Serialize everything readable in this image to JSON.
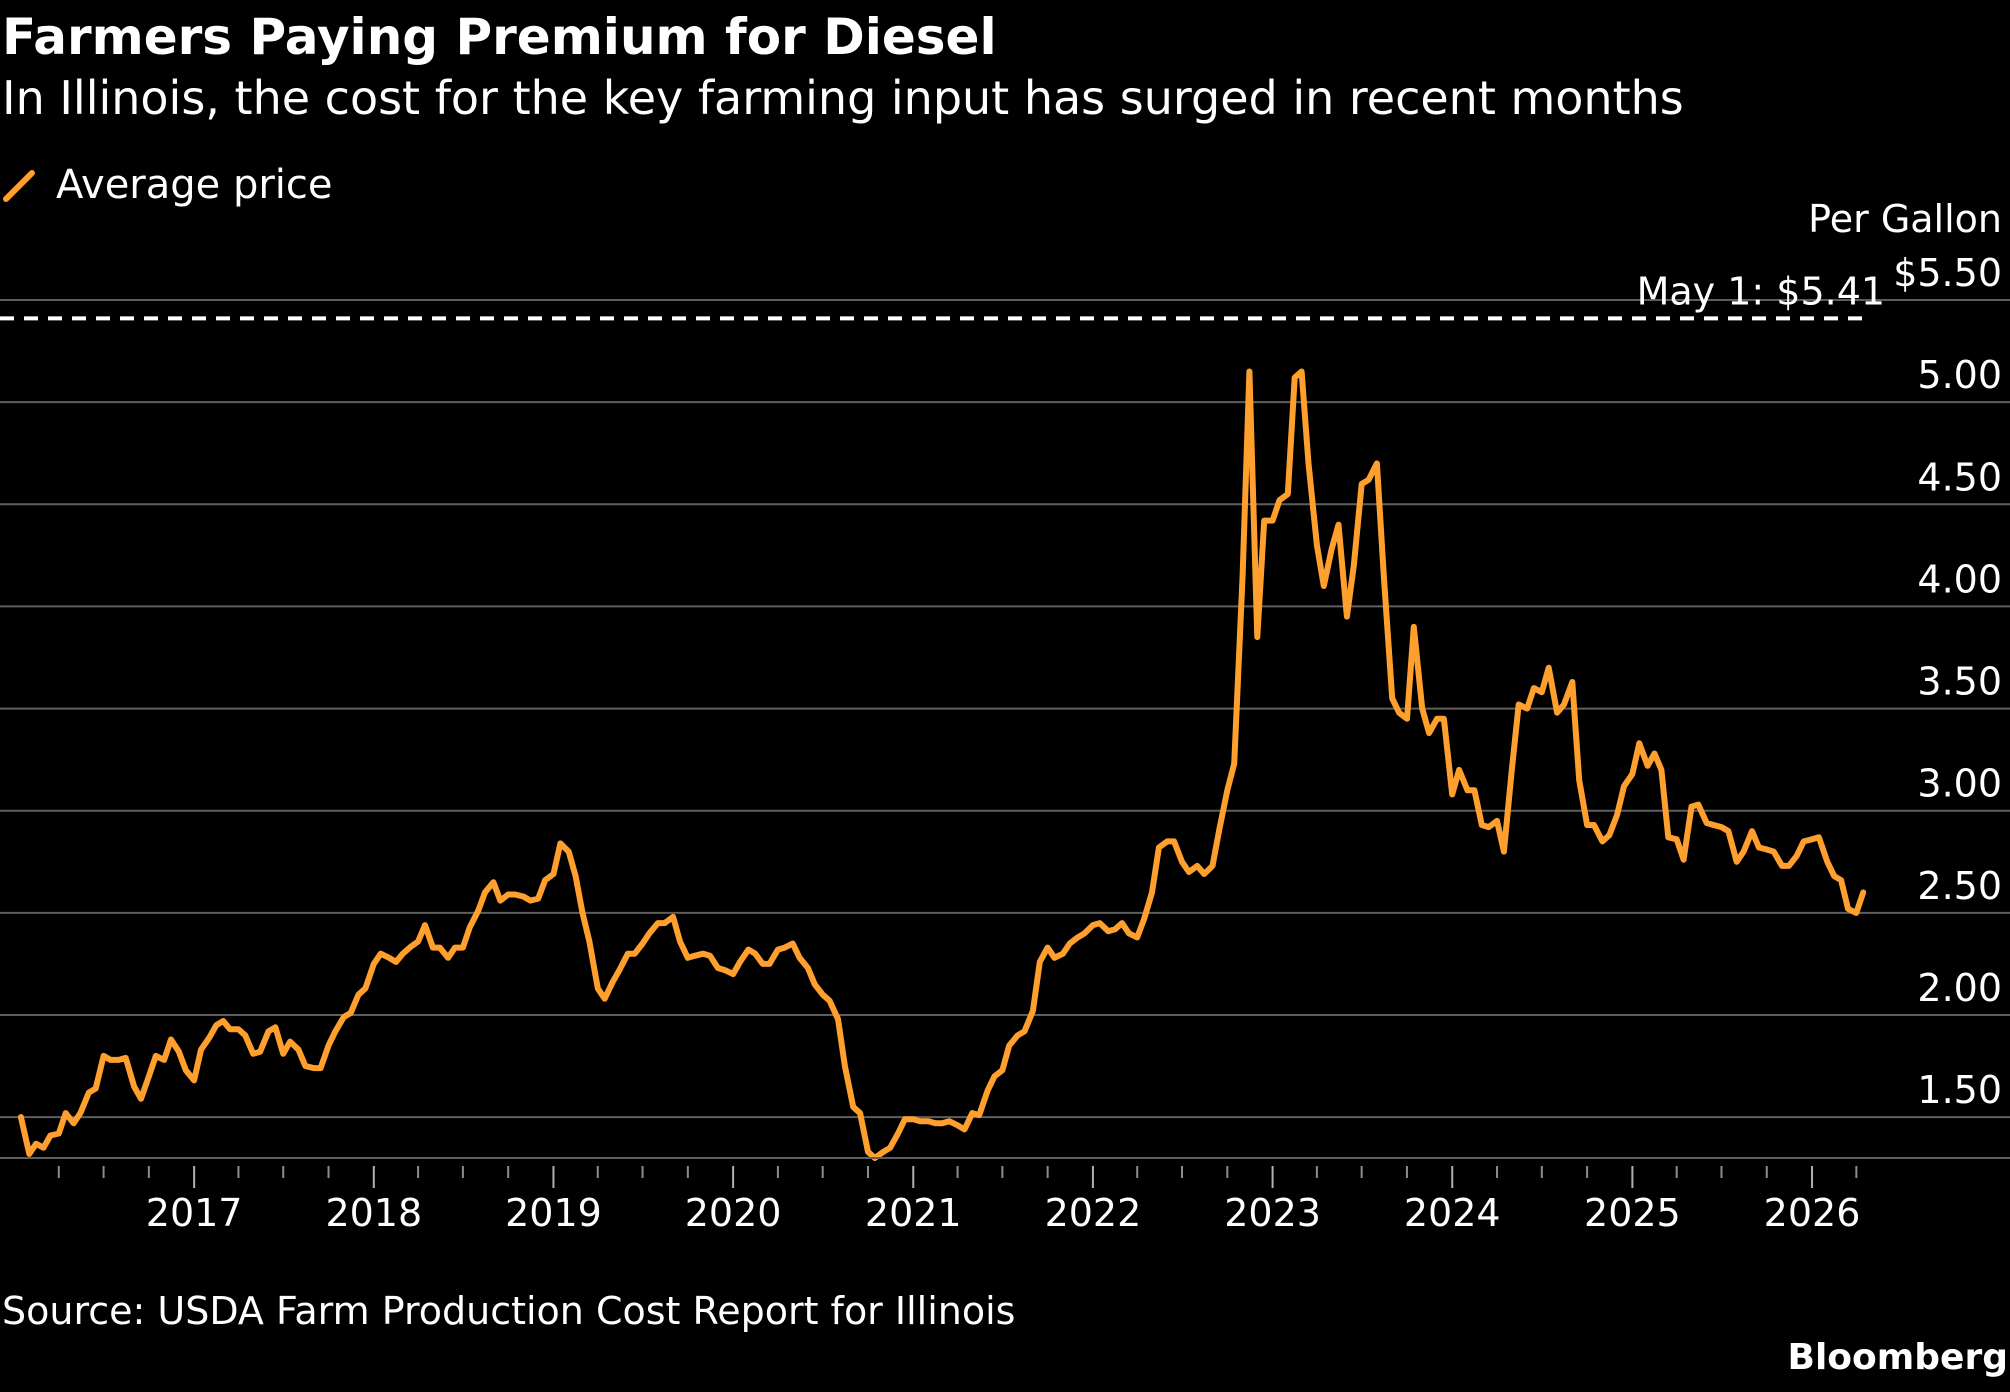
{
  "header": {
    "title": "Farmers Paying Premium for Diesel",
    "subtitle": "In Illinois, the cost for the key farming input has surged in recent months"
  },
  "legend": {
    "label": "Average price",
    "color": "#ff9f2e"
  },
  "footer": {
    "source": "Source: USDA Farm Production Cost Report for Illinois",
    "brand": "Bloomberg"
  },
  "chart_data": {
    "type": "line",
    "title": "Farmers Paying Premium for Diesel",
    "subtitle": "In Illinois, the cost for the key farming input has surged in recent months",
    "unit_label": "Per Gallon",
    "xlabel": "",
    "ylabel": "",
    "xlim": [
      "2016-01-01",
      "2026-05-15"
    ],
    "ylim": [
      1.3,
      5.5
    ],
    "y_ticks": [
      {
        "value": 1.5,
        "label": "1.50"
      },
      {
        "value": 2.0,
        "label": "2.00"
      },
      {
        "value": 2.5,
        "label": "2.50"
      },
      {
        "value": 3.0,
        "label": "3.00"
      },
      {
        "value": 3.5,
        "label": "3.50"
      },
      {
        "value": 4.0,
        "label": "4.00"
      },
      {
        "value": 4.5,
        "label": "4.50"
      },
      {
        "value": 5.0,
        "label": "5.00"
      },
      {
        "value": 5.5,
        "label": "$5.50"
      }
    ],
    "x_ticks": [
      "2017",
      "2018",
      "2019",
      "2020",
      "2021",
      "2022",
      "2023",
      "2024",
      "2025",
      "2026"
    ],
    "grid": true,
    "legend_position": "top-left",
    "annotation": {
      "label": "May 1: $5.41",
      "value": 5.41,
      "date": "2026-05-01"
    },
    "series": [
      {
        "name": "Average price",
        "color": "#ff9f2e",
        "points": [
          [
            "2016-01-15",
            1.5
          ],
          [
            "2016-02-01",
            1.32
          ],
          [
            "2016-02-15",
            1.37
          ],
          [
            "2016-03-01",
            1.35
          ],
          [
            "2016-03-15",
            1.41
          ],
          [
            "2016-04-01",
            1.42
          ],
          [
            "2016-04-15",
            1.52
          ],
          [
            "2016-05-01",
            1.47
          ],
          [
            "2016-05-15",
            1.52
          ],
          [
            "2016-06-01",
            1.62
          ],
          [
            "2016-06-15",
            1.64
          ],
          [
            "2016-07-01",
            1.8
          ],
          [
            "2016-07-15",
            1.78
          ],
          [
            "2016-08-01",
            1.78
          ],
          [
            "2016-08-15",
            1.79
          ],
          [
            "2016-09-01",
            1.65
          ],
          [
            "2016-09-15",
            1.59
          ],
          [
            "2016-10-01",
            1.7
          ],
          [
            "2016-10-15",
            1.8
          ],
          [
            "2016-11-01",
            1.78
          ],
          [
            "2016-11-15",
            1.88
          ],
          [
            "2016-12-01",
            1.82
          ],
          [
            "2016-12-15",
            1.73
          ],
          [
            "2017-01-01",
            1.68
          ],
          [
            "2017-01-15",
            1.83
          ],
          [
            "2017-02-01",
            1.89
          ],
          [
            "2017-02-15",
            1.95
          ],
          [
            "2017-03-01",
            1.97
          ],
          [
            "2017-03-15",
            1.93
          ],
          [
            "2017-04-01",
            1.93
          ],
          [
            "2017-04-15",
            1.9
          ],
          [
            "2017-05-01",
            1.81
          ],
          [
            "2017-05-15",
            1.82
          ],
          [
            "2017-06-01",
            1.92
          ],
          [
            "2017-06-15",
            1.94
          ],
          [
            "2017-07-01",
            1.81
          ],
          [
            "2017-07-15",
            1.87
          ],
          [
            "2017-08-01",
            1.83
          ],
          [
            "2017-08-15",
            1.75
          ],
          [
            "2017-09-01",
            1.74
          ],
          [
            "2017-09-15",
            1.74
          ],
          [
            "2017-10-01",
            1.85
          ],
          [
            "2017-10-15",
            1.92
          ],
          [
            "2017-11-01",
            1.99
          ],
          [
            "2017-11-15",
            2.01
          ],
          [
            "2017-12-01",
            2.1
          ],
          [
            "2017-12-15",
            2.13
          ],
          [
            "2018-01-01",
            2.25
          ],
          [
            "2018-01-15",
            2.3
          ],
          [
            "2018-02-01",
            2.28
          ],
          [
            "2018-02-15",
            2.26
          ],
          [
            "2018-03-01",
            2.3
          ],
          [
            "2018-03-15",
            2.33
          ],
          [
            "2018-04-01",
            2.36
          ],
          [
            "2018-04-15",
            2.44
          ],
          [
            "2018-05-01",
            2.33
          ],
          [
            "2018-05-15",
            2.33
          ],
          [
            "2018-06-01",
            2.28
          ],
          [
            "2018-06-15",
            2.33
          ],
          [
            "2018-07-01",
            2.33
          ],
          [
            "2018-07-15",
            2.43
          ],
          [
            "2018-08-01",
            2.51
          ],
          [
            "2018-08-15",
            2.6
          ],
          [
            "2018-09-01",
            2.65
          ],
          [
            "2018-09-15",
            2.56
          ],
          [
            "2018-10-01",
            2.59
          ],
          [
            "2018-10-15",
            2.59
          ],
          [
            "2018-11-01",
            2.58
          ],
          [
            "2018-11-15",
            2.56
          ],
          [
            "2018-12-01",
            2.57
          ],
          [
            "2018-12-15",
            2.66
          ],
          [
            "2019-01-01",
            2.69
          ],
          [
            "2019-01-15",
            2.84
          ],
          [
            "2019-02-01",
            2.8
          ],
          [
            "2019-02-15",
            2.68
          ],
          [
            "2019-03-01",
            2.5
          ],
          [
            "2019-03-15",
            2.36
          ],
          [
            "2019-04-01",
            2.13
          ],
          [
            "2019-04-15",
            2.08
          ],
          [
            "2019-05-01",
            2.16
          ],
          [
            "2019-05-15",
            2.22
          ],
          [
            "2019-06-01",
            2.3
          ],
          [
            "2019-06-15",
            2.3
          ],
          [
            "2019-07-01",
            2.35
          ],
          [
            "2019-07-15",
            2.4
          ],
          [
            "2019-08-01",
            2.45
          ],
          [
            "2019-08-15",
            2.45
          ],
          [
            "2019-09-01",
            2.48
          ],
          [
            "2019-09-15",
            2.36
          ],
          [
            "2019-10-01",
            2.28
          ],
          [
            "2019-10-15",
            2.29
          ],
          [
            "2019-11-01",
            2.3
          ],
          [
            "2019-11-15",
            2.29
          ],
          [
            "2019-12-01",
            2.23
          ],
          [
            "2019-12-15",
            2.22
          ],
          [
            "2020-01-01",
            2.2
          ],
          [
            "2020-01-15",
            2.26
          ],
          [
            "2020-02-01",
            2.32
          ],
          [
            "2020-02-15",
            2.3
          ],
          [
            "2020-03-01",
            2.25
          ],
          [
            "2020-03-15",
            2.25
          ],
          [
            "2020-04-01",
            2.32
          ],
          [
            "2020-04-15",
            2.33
          ],
          [
            "2020-05-01",
            2.35
          ],
          [
            "2020-05-15",
            2.28
          ],
          [
            "2020-06-01",
            2.23
          ],
          [
            "2020-06-15",
            2.15
          ],
          [
            "2020-07-01",
            2.1
          ],
          [
            "2020-07-15",
            2.07
          ],
          [
            "2020-08-01",
            1.98
          ],
          [
            "2020-08-15",
            1.75
          ],
          [
            "2020-09-01",
            1.55
          ],
          [
            "2020-09-15",
            1.52
          ],
          [
            "2020-10-01",
            1.33
          ],
          [
            "2020-10-15",
            1.3
          ],
          [
            "2020-11-01",
            1.33
          ],
          [
            "2020-11-15",
            1.35
          ],
          [
            "2020-12-01",
            1.42
          ],
          [
            "2020-12-15",
            1.49
          ],
          [
            "2021-01-01",
            1.49
          ],
          [
            "2021-01-15",
            1.48
          ],
          [
            "2021-02-01",
            1.48
          ],
          [
            "2021-02-15",
            1.47
          ],
          [
            "2021-03-01",
            1.47
          ],
          [
            "2021-03-15",
            1.48
          ],
          [
            "2021-04-01",
            1.46
          ],
          [
            "2021-04-15",
            1.44
          ],
          [
            "2021-05-01",
            1.52
          ],
          [
            "2021-05-15",
            1.51
          ],
          [
            "2021-06-01",
            1.63
          ],
          [
            "2021-06-15",
            1.7
          ],
          [
            "2021-07-01",
            1.73
          ],
          [
            "2021-07-15",
            1.85
          ],
          [
            "2021-08-01",
            1.9
          ],
          [
            "2021-08-15",
            1.92
          ],
          [
            "2021-09-01",
            2.02
          ],
          [
            "2021-09-15",
            2.26
          ],
          [
            "2021-10-01",
            2.33
          ],
          [
            "2021-10-15",
            2.28
          ],
          [
            "2021-11-01",
            2.3
          ],
          [
            "2021-11-15",
            2.35
          ],
          [
            "2021-12-01",
            2.38
          ],
          [
            "2021-12-15",
            2.4
          ],
          [
            "2022-01-01",
            2.44
          ],
          [
            "2022-01-15",
            2.45
          ],
          [
            "2022-02-01",
            2.41
          ],
          [
            "2022-02-15",
            2.42
          ],
          [
            "2022-03-01",
            2.45
          ],
          [
            "2022-03-15",
            2.4
          ],
          [
            "2022-04-01",
            2.38
          ],
          [
            "2022-04-15",
            2.47
          ],
          [
            "2022-05-01",
            2.6
          ],
          [
            "2022-05-15",
            2.82
          ],
          [
            "2022-06-01",
            2.85
          ],
          [
            "2022-06-15",
            2.85
          ],
          [
            "2022-07-01",
            2.75
          ],
          [
            "2022-07-15",
            2.7
          ],
          [
            "2022-08-01",
            2.73
          ],
          [
            "2022-08-15",
            2.69
          ],
          [
            "2022-09-01",
            2.73
          ],
          [
            "2022-09-15",
            2.91
          ],
          [
            "2022-10-01",
            3.1
          ],
          [
            "2022-10-15",
            3.23
          ],
          [
            "2022-11-01",
            4.15
          ],
          [
            "2022-11-15",
            5.15
          ],
          [
            "2022-12-01",
            3.85
          ],
          [
            "2022-12-15",
            4.42
          ],
          [
            "2023-01-01",
            4.42
          ],
          [
            "2023-01-15",
            4.52
          ],
          [
            "2023-02-01",
            4.55
          ],
          [
            "2023-02-15",
            5.12
          ],
          [
            "2023-03-01",
            5.15
          ],
          [
            "2023-03-15",
            4.7
          ],
          [
            "2023-04-01",
            4.3
          ],
          [
            "2023-04-15",
            4.1
          ],
          [
            "2023-05-01",
            4.28
          ],
          [
            "2023-05-15",
            4.4
          ],
          [
            "2023-06-01",
            3.95
          ],
          [
            "2023-06-15",
            4.2
          ],
          [
            "2023-07-01",
            4.6
          ],
          [
            "2023-07-15",
            4.62
          ],
          [
            "2023-08-01",
            4.7
          ],
          [
            "2023-08-15",
            4.15
          ],
          [
            "2023-09-01",
            3.55
          ],
          [
            "2023-09-15",
            3.48
          ],
          [
            "2023-10-01",
            3.45
          ],
          [
            "2023-10-15",
            3.9
          ],
          [
            "2023-11-01",
            3.5
          ],
          [
            "2023-11-15",
            3.38
          ],
          [
            "2023-12-01",
            3.45
          ],
          [
            "2023-12-15",
            3.45
          ],
          [
            "2024-01-01",
            3.08
          ],
          [
            "2024-01-15",
            3.2
          ],
          [
            "2024-02-01",
            3.1
          ],
          [
            "2024-02-15",
            3.1
          ],
          [
            "2024-03-01",
            2.93
          ],
          [
            "2024-03-15",
            2.92
          ],
          [
            "2024-04-01",
            2.95
          ],
          [
            "2024-04-15",
            2.8
          ],
          [
            "2024-05-01",
            3.2
          ],
          [
            "2024-05-15",
            3.52
          ],
          [
            "2024-06-01",
            3.5
          ],
          [
            "2024-06-15",
            3.6
          ],
          [
            "2024-07-01",
            3.58
          ],
          [
            "2024-07-15",
            3.7
          ],
          [
            "2024-08-01",
            3.48
          ],
          [
            "2024-08-15",
            3.52
          ],
          [
            "2024-09-01",
            3.63
          ],
          [
            "2024-09-15",
            3.15
          ],
          [
            "2024-10-01",
            2.93
          ],
          [
            "2024-10-15",
            2.93
          ],
          [
            "2024-11-01",
            2.85
          ],
          [
            "2024-11-15",
            2.88
          ],
          [
            "2024-12-01",
            2.98
          ],
          [
            "2024-12-15",
            3.12
          ],
          [
            "2025-01-01",
            3.18
          ],
          [
            "2025-01-15",
            3.33
          ],
          [
            "2025-02-01",
            3.22
          ],
          [
            "2025-02-15",
            3.28
          ],
          [
            "2025-03-01",
            3.2
          ],
          [
            "2025-03-15",
            2.87
          ],
          [
            "2025-04-01",
            2.86
          ],
          [
            "2025-04-15",
            2.76
          ],
          [
            "2025-05-01",
            3.02
          ],
          [
            "2025-05-15",
            3.03
          ],
          [
            "2025-06-01",
            2.94
          ],
          [
            "2025-06-15",
            2.93
          ],
          [
            "2025-07-01",
            2.92
          ],
          [
            "2025-07-15",
            2.9
          ],
          [
            "2025-08-01",
            2.75
          ],
          [
            "2025-08-15",
            2.8
          ],
          [
            "2025-09-01",
            2.9
          ],
          [
            "2025-09-15",
            2.82
          ],
          [
            "2025-10-01",
            2.81
          ],
          [
            "2025-10-15",
            2.8
          ],
          [
            "2025-11-01",
            2.73
          ],
          [
            "2025-11-15",
            2.73
          ],
          [
            "2025-12-01",
            2.78
          ],
          [
            "2025-12-15",
            2.85
          ],
          [
            "2026-01-01",
            2.86
          ],
          [
            "2026-01-15",
            2.87
          ],
          [
            "2026-02-01",
            2.75
          ],
          [
            "2026-02-15",
            2.68
          ],
          [
            "2026-03-01",
            2.66
          ],
          [
            "2026-03-15",
            2.52
          ],
          [
            "2026-04-01",
            2.5
          ],
          [
            "2026-04-15",
            2.6
          ]
        ]
      }
    ]
  }
}
